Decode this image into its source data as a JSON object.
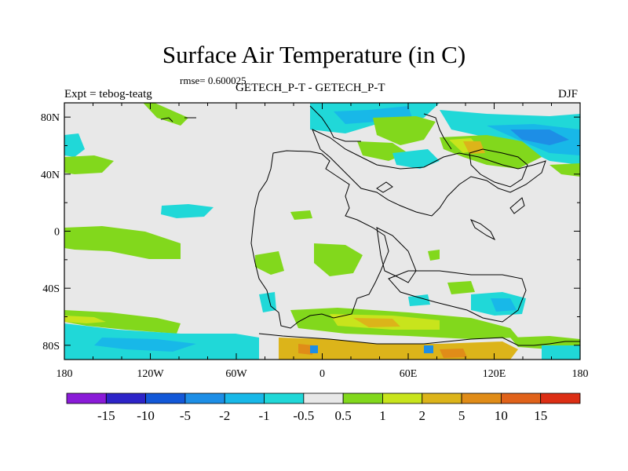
{
  "title": "Surface Air Temperature (in C)",
  "rmse_label": "rmse= 0.600025",
  "left_label": "Expt = tebog-teatg",
  "center_label": "GETECH_P-T - GETECH_P-T",
  "right_label": "DJF",
  "map": {
    "projection": "cylindrical equidistant",
    "lon_range": [
      -180,
      180
    ],
    "lat_range": [
      -90,
      90
    ],
    "x_ticks": [
      "180",
      "120W",
      "60W",
      "0",
      "60E",
      "120E",
      "180"
    ],
    "y_ticks": [
      "80N",
      "40N",
      "0",
      "40S",
      "80S"
    ],
    "background_color": "#e8e8e8"
  },
  "colorbar": {
    "colors": [
      "#8a1bd8",
      "#2d24c8",
      "#1358d8",
      "#1d8ee6",
      "#18b8e8",
      "#20d8d8",
      "#e8e8e8",
      "#82d81c",
      "#c8e41c",
      "#dcb41a",
      "#e08c18",
      "#e0621a",
      "#dc2e14"
    ],
    "labels": [
      "-15",
      "-10",
      "-5",
      "-2",
      "-1",
      "-0.5",
      "0.5",
      "1",
      "2",
      "5",
      "10",
      "15"
    ]
  }
}
